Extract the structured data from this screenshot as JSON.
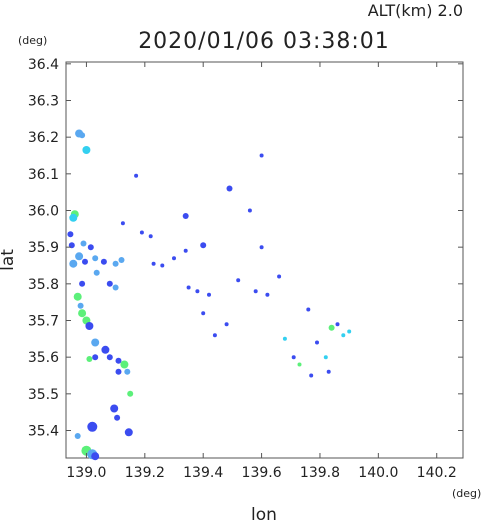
{
  "header": {
    "alt_label": "ALT(km)  2.0",
    "timestamp": "2020/01/06  03:38:01"
  },
  "chart_data": {
    "type": "scatter",
    "title": "2020/01/06  03:38:01",
    "xlabel": "lon",
    "ylabel": "lat",
    "x_unit": "(deg)",
    "y_unit": "(deg)",
    "xlim": [
      138.93,
      140.29
    ],
    "ylim": [
      35.325,
      36.405
    ],
    "x_ticks": [
      139.0,
      139.2,
      139.4,
      139.6,
      139.8,
      140.0,
      140.2
    ],
    "x_tick_labels": [
      "139.0",
      "139.2",
      "139.4",
      "139.6",
      "139.8",
      "140.0",
      "140.2"
    ],
    "y_ticks": [
      35.4,
      35.5,
      35.6,
      35.7,
      35.8,
      35.9,
      36.0,
      36.1,
      36.2,
      36.3,
      36.4
    ],
    "y_tick_labels": [
      "35.4",
      "35.5",
      "35.6",
      "35.7",
      "35.8",
      "35.9",
      "36.0",
      "36.1",
      "36.2",
      "36.3",
      "36.4"
    ],
    "grid": false,
    "colors": {
      "blue": "#3b4cf0",
      "lightblue": "#5aa8f0",
      "cyan": "#33d0f0",
      "green": "#5cf07a"
    },
    "points": [
      {
        "lon": 138.975,
        "lat": 36.21,
        "c": "lightblue",
        "s": 4
      },
      {
        "lon": 138.985,
        "lat": 36.205,
        "c": "lightblue",
        "s": 3
      },
      {
        "lon": 139.0,
        "lat": 36.165,
        "c": "cyan",
        "s": 4
      },
      {
        "lon": 138.96,
        "lat": 35.99,
        "c": "green",
        "s": 4
      },
      {
        "lon": 138.955,
        "lat": 35.98,
        "c": "cyan",
        "s": 4
      },
      {
        "lon": 138.945,
        "lat": 35.935,
        "c": "blue",
        "s": 3
      },
      {
        "lon": 138.95,
        "lat": 35.905,
        "c": "blue",
        "s": 3
      },
      {
        "lon": 138.99,
        "lat": 35.91,
        "c": "lightblue",
        "s": 3
      },
      {
        "lon": 139.015,
        "lat": 35.9,
        "c": "blue",
        "s": 3
      },
      {
        "lon": 138.975,
        "lat": 35.875,
        "c": "lightblue",
        "s": 4
      },
      {
        "lon": 138.955,
        "lat": 35.855,
        "c": "lightblue",
        "s": 4
      },
      {
        "lon": 138.995,
        "lat": 35.86,
        "c": "blue",
        "s": 3
      },
      {
        "lon": 139.03,
        "lat": 35.87,
        "c": "lightblue",
        "s": 3
      },
      {
        "lon": 139.06,
        "lat": 35.86,
        "c": "blue",
        "s": 3
      },
      {
        "lon": 139.1,
        "lat": 35.855,
        "c": "lightblue",
        "s": 3
      },
      {
        "lon": 139.12,
        "lat": 35.865,
        "c": "lightblue",
        "s": 3
      },
      {
        "lon": 139.035,
        "lat": 35.83,
        "c": "lightblue",
        "s": 3
      },
      {
        "lon": 139.08,
        "lat": 35.8,
        "c": "blue",
        "s": 3
      },
      {
        "lon": 139.1,
        "lat": 35.79,
        "c": "lightblue",
        "s": 3
      },
      {
        "lon": 138.985,
        "lat": 35.8,
        "c": "blue",
        "s": 3
      },
      {
        "lon": 138.97,
        "lat": 35.765,
        "c": "green",
        "s": 4
      },
      {
        "lon": 138.98,
        "lat": 35.74,
        "c": "lightblue",
        "s": 3
      },
      {
        "lon": 138.985,
        "lat": 35.72,
        "c": "green",
        "s": 4
      },
      {
        "lon": 139.0,
        "lat": 35.7,
        "c": "green",
        "s": 4
      },
      {
        "lon": 139.01,
        "lat": 35.685,
        "c": "blue",
        "s": 4
      },
      {
        "lon": 139.03,
        "lat": 35.64,
        "c": "lightblue",
        "s": 4
      },
      {
        "lon": 139.065,
        "lat": 35.62,
        "c": "blue",
        "s": 4
      },
      {
        "lon": 139.08,
        "lat": 35.6,
        "c": "blue",
        "s": 3
      },
      {
        "lon": 139.01,
        "lat": 35.595,
        "c": "green",
        "s": 3
      },
      {
        "lon": 139.03,
        "lat": 35.6,
        "c": "blue",
        "s": 3
      },
      {
        "lon": 139.11,
        "lat": 35.59,
        "c": "blue",
        "s": 3
      },
      {
        "lon": 139.13,
        "lat": 35.58,
        "c": "green",
        "s": 4
      },
      {
        "lon": 139.14,
        "lat": 35.56,
        "c": "lightblue",
        "s": 3
      },
      {
        "lon": 139.11,
        "lat": 35.56,
        "c": "blue",
        "s": 3
      },
      {
        "lon": 139.15,
        "lat": 35.5,
        "c": "green",
        "s": 3
      },
      {
        "lon": 139.095,
        "lat": 35.46,
        "c": "blue",
        "s": 4
      },
      {
        "lon": 139.105,
        "lat": 35.435,
        "c": "blue",
        "s": 3
      },
      {
        "lon": 139.02,
        "lat": 35.41,
        "c": "blue",
        "s": 5
      },
      {
        "lon": 138.97,
        "lat": 35.385,
        "c": "lightblue",
        "s": 3
      },
      {
        "lon": 139.145,
        "lat": 35.395,
        "c": "blue",
        "s": 4
      },
      {
        "lon": 139.0,
        "lat": 35.345,
        "c": "green",
        "s": 5
      },
      {
        "lon": 139.02,
        "lat": 35.335,
        "c": "lightblue",
        "s": 5
      },
      {
        "lon": 139.03,
        "lat": 35.33,
        "c": "blue",
        "s": 4
      },
      {
        "lon": 139.125,
        "lat": 35.965,
        "c": "blue",
        "s": 2
      },
      {
        "lon": 139.17,
        "lat": 36.095,
        "c": "blue",
        "s": 2
      },
      {
        "lon": 139.19,
        "lat": 35.94,
        "c": "blue",
        "s": 2
      },
      {
        "lon": 139.22,
        "lat": 35.93,
        "c": "blue",
        "s": 2
      },
      {
        "lon": 139.23,
        "lat": 35.855,
        "c": "blue",
        "s": 2
      },
      {
        "lon": 139.26,
        "lat": 35.85,
        "c": "blue",
        "s": 2
      },
      {
        "lon": 139.3,
        "lat": 35.87,
        "c": "blue",
        "s": 2
      },
      {
        "lon": 139.34,
        "lat": 35.89,
        "c": "blue",
        "s": 2
      },
      {
        "lon": 139.34,
        "lat": 35.985,
        "c": "blue",
        "s": 3
      },
      {
        "lon": 139.4,
        "lat": 35.905,
        "c": "blue",
        "s": 3
      },
      {
        "lon": 139.35,
        "lat": 35.79,
        "c": "blue",
        "s": 2
      },
      {
        "lon": 139.38,
        "lat": 35.78,
        "c": "blue",
        "s": 2
      },
      {
        "lon": 139.42,
        "lat": 35.77,
        "c": "blue",
        "s": 2
      },
      {
        "lon": 139.4,
        "lat": 35.72,
        "c": "blue",
        "s": 2
      },
      {
        "lon": 139.44,
        "lat": 35.66,
        "c": "blue",
        "s": 2
      },
      {
        "lon": 139.48,
        "lat": 35.69,
        "c": "blue",
        "s": 2
      },
      {
        "lon": 139.49,
        "lat": 36.06,
        "c": "blue",
        "s": 3
      },
      {
        "lon": 139.52,
        "lat": 35.81,
        "c": "blue",
        "s": 2
      },
      {
        "lon": 139.56,
        "lat": 36.0,
        "c": "blue",
        "s": 2
      },
      {
        "lon": 139.58,
        "lat": 35.78,
        "c": "blue",
        "s": 2
      },
      {
        "lon": 139.6,
        "lat": 36.15,
        "c": "blue",
        "s": 2
      },
      {
        "lon": 139.6,
        "lat": 35.9,
        "c": "blue",
        "s": 2
      },
      {
        "lon": 139.62,
        "lat": 35.77,
        "c": "blue",
        "s": 2
      },
      {
        "lon": 139.66,
        "lat": 35.82,
        "c": "blue",
        "s": 2
      },
      {
        "lon": 139.68,
        "lat": 35.65,
        "c": "cyan",
        "s": 2
      },
      {
        "lon": 139.71,
        "lat": 35.6,
        "c": "blue",
        "s": 2
      },
      {
        "lon": 139.73,
        "lat": 35.58,
        "c": "green",
        "s": 2
      },
      {
        "lon": 139.76,
        "lat": 35.73,
        "c": "blue",
        "s": 2
      },
      {
        "lon": 139.77,
        "lat": 35.55,
        "c": "blue",
        "s": 2
      },
      {
        "lon": 139.79,
        "lat": 35.64,
        "c": "blue",
        "s": 2
      },
      {
        "lon": 139.82,
        "lat": 35.6,
        "c": "cyan",
        "s": 2
      },
      {
        "lon": 139.83,
        "lat": 35.56,
        "c": "blue",
        "s": 2
      },
      {
        "lon": 139.84,
        "lat": 35.68,
        "c": "green",
        "s": 3
      },
      {
        "lon": 139.86,
        "lat": 35.69,
        "c": "blue",
        "s": 2
      },
      {
        "lon": 139.88,
        "lat": 35.66,
        "c": "cyan",
        "s": 2
      },
      {
        "lon": 139.9,
        "lat": 35.67,
        "c": "cyan",
        "s": 2
      }
    ]
  }
}
